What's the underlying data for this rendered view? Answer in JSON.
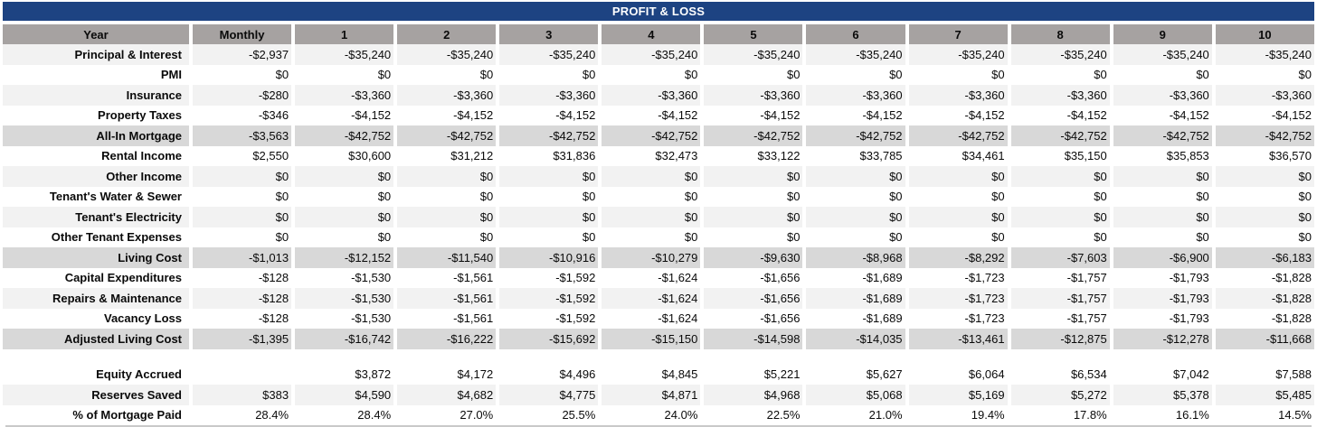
{
  "title": "PROFIT & LOSS",
  "colors": {
    "title_bg": "#1d4382",
    "title_text": "#ffffff",
    "header_bg": "#a6a2a1",
    "subtotal_bg": "#d8d8d8",
    "stripe_bg": "#f2f2f2"
  },
  "table": {
    "columns": [
      "Year",
      "Monthly",
      "1",
      "2",
      "3",
      "4",
      "5",
      "6",
      "7",
      "8",
      "9",
      "10"
    ],
    "rows": [
      {
        "label": "Principal & Interest",
        "type": "stripe",
        "values": [
          "-$2,937",
          "-$35,240",
          "-$35,240",
          "-$35,240",
          "-$35,240",
          "-$35,240",
          "-$35,240",
          "-$35,240",
          "-$35,240",
          "-$35,240",
          "-$35,240"
        ]
      },
      {
        "label": "PMI",
        "type": "plain",
        "values": [
          "$0",
          "$0",
          "$0",
          "$0",
          "$0",
          "$0",
          "$0",
          "$0",
          "$0",
          "$0",
          "$0"
        ]
      },
      {
        "label": "Insurance",
        "type": "stripe",
        "values": [
          "-$280",
          "-$3,360",
          "-$3,360",
          "-$3,360",
          "-$3,360",
          "-$3,360",
          "-$3,360",
          "-$3,360",
          "-$3,360",
          "-$3,360",
          "-$3,360"
        ]
      },
      {
        "label": "Property Taxes",
        "type": "plain",
        "values": [
          "-$346",
          "-$4,152",
          "-$4,152",
          "-$4,152",
          "-$4,152",
          "-$4,152",
          "-$4,152",
          "-$4,152",
          "-$4,152",
          "-$4,152",
          "-$4,152"
        ]
      },
      {
        "label": "All-In Mortgage",
        "type": "subtotal",
        "values": [
          "-$3,563",
          "-$42,752",
          "-$42,752",
          "-$42,752",
          "-$42,752",
          "-$42,752",
          "-$42,752",
          "-$42,752",
          "-$42,752",
          "-$42,752",
          "-$42,752"
        ]
      },
      {
        "label": "Rental Income",
        "type": "plain",
        "values": [
          "$2,550",
          "$30,600",
          "$31,212",
          "$31,836",
          "$32,473",
          "$33,122",
          "$33,785",
          "$34,461",
          "$35,150",
          "$35,853",
          "$36,570"
        ]
      },
      {
        "label": "Other Income",
        "type": "stripe",
        "values": [
          "$0",
          "$0",
          "$0",
          "$0",
          "$0",
          "$0",
          "$0",
          "$0",
          "$0",
          "$0",
          "$0"
        ]
      },
      {
        "label": "Tenant's Water & Sewer",
        "type": "plain",
        "values": [
          "$0",
          "$0",
          "$0",
          "$0",
          "$0",
          "$0",
          "$0",
          "$0",
          "$0",
          "$0",
          "$0"
        ]
      },
      {
        "label": "Tenant's Electricity",
        "type": "stripe",
        "values": [
          "$0",
          "$0",
          "$0",
          "$0",
          "$0",
          "$0",
          "$0",
          "$0",
          "$0",
          "$0",
          "$0"
        ]
      },
      {
        "label": "Other Tenant Expenses",
        "type": "plain",
        "values": [
          "$0",
          "$0",
          "$0",
          "$0",
          "$0",
          "$0",
          "$0",
          "$0",
          "$0",
          "$0",
          "$0"
        ]
      },
      {
        "label": "Living Cost",
        "type": "subtotal",
        "values": [
          "-$1,013",
          "-$12,152",
          "-$11,540",
          "-$10,916",
          "-$10,279",
          "-$9,630",
          "-$8,968",
          "-$8,292",
          "-$7,603",
          "-$6,900",
          "-$6,183"
        ]
      },
      {
        "label": "Capital Expenditures",
        "type": "plain",
        "values": [
          "-$128",
          "-$1,530",
          "-$1,561",
          "-$1,592",
          "-$1,624",
          "-$1,656",
          "-$1,689",
          "-$1,723",
          "-$1,757",
          "-$1,793",
          "-$1,828"
        ]
      },
      {
        "label": "Repairs & Maintenance",
        "type": "stripe",
        "values": [
          "-$128",
          "-$1,530",
          "-$1,561",
          "-$1,592",
          "-$1,624",
          "-$1,656",
          "-$1,689",
          "-$1,723",
          "-$1,757",
          "-$1,793",
          "-$1,828"
        ]
      },
      {
        "label": "Vacancy Loss",
        "type": "plain",
        "values": [
          "-$128",
          "-$1,530",
          "-$1,561",
          "-$1,592",
          "-$1,624",
          "-$1,656",
          "-$1,689",
          "-$1,723",
          "-$1,757",
          "-$1,793",
          "-$1,828"
        ]
      },
      {
        "label": "Adjusted Living Cost",
        "type": "subtotal",
        "values": [
          "-$1,395",
          "-$16,742",
          "-$16,222",
          "-$15,692",
          "-$15,150",
          "-$14,598",
          "-$14,035",
          "-$13,461",
          "-$12,875",
          "-$12,278",
          "-$11,668"
        ]
      },
      {
        "label": "",
        "type": "spacer",
        "values": [
          "",
          "",
          "",
          "",
          "",
          "",
          "",
          "",
          "",
          "",
          ""
        ]
      },
      {
        "label": "Equity Accrued",
        "type": "plain",
        "values": [
          "",
          "$3,872",
          "$4,172",
          "$4,496",
          "$4,845",
          "$5,221",
          "$5,627",
          "$6,064",
          "$6,534",
          "$7,042",
          "$7,588"
        ]
      },
      {
        "label": "Reserves Saved",
        "type": "stripe",
        "values": [
          "$383",
          "$4,590",
          "$4,682",
          "$4,775",
          "$4,871",
          "$4,968",
          "$5,068",
          "$5,169",
          "$5,272",
          "$5,378",
          "$5,485"
        ]
      },
      {
        "label": "% of Mortgage Paid",
        "type": "plain",
        "values": [
          "28.4%",
          "28.4%",
          "27.0%",
          "25.5%",
          "24.0%",
          "22.5%",
          "21.0%",
          "19.4%",
          "17.8%",
          "16.1%",
          "14.5%"
        ]
      }
    ]
  }
}
